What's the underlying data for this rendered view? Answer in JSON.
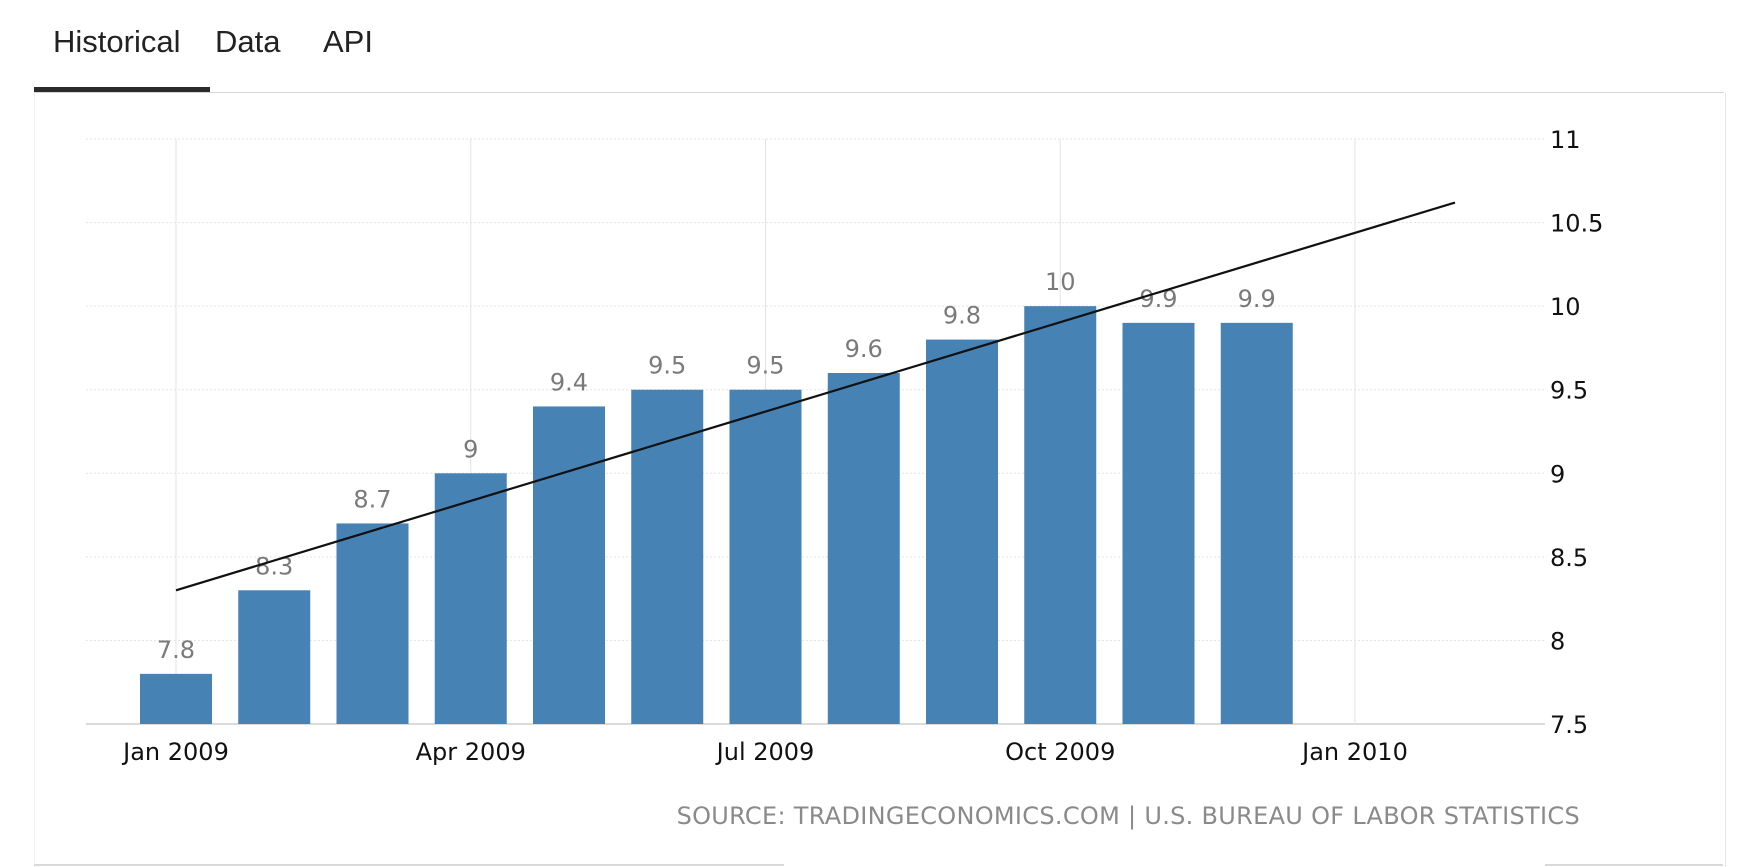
{
  "tabs": [
    {
      "label": "Historical",
      "active": true
    },
    {
      "label": "Data",
      "active": false
    },
    {
      "label": "API",
      "active": false
    }
  ],
  "colors": {
    "bar": "#4682b4",
    "trend_line": "#111111",
    "grid": "#e3e3e3",
    "value_label": "#7a7a7a",
    "axis_text": "#111111"
  },
  "source_text": "SOURCE: TRADINGECONOMICS.COM | U.S. BUREAU OF LABOR STATISTICS",
  "chart_data": {
    "type": "bar",
    "title": "",
    "xlabel": "",
    "ylabel": "",
    "x_unit": "month",
    "categories": [
      "Jan 2009",
      "Feb 2009",
      "Mar 2009",
      "Apr 2009",
      "May 2009",
      "Jun 2009",
      "Jul 2009",
      "Aug 2009",
      "Sep 2009",
      "Oct 2009",
      "Nov 2009",
      "Dec 2009"
    ],
    "values": [
      7.8,
      8.3,
      8.7,
      9.0,
      9.4,
      9.5,
      9.5,
      9.6,
      9.8,
      10.0,
      9.9,
      9.9
    ],
    "value_labels": [
      "7.8",
      "8.3",
      "8.7",
      "9",
      "9.4",
      "9.5",
      "9.5",
      "9.6",
      "9.8",
      "10",
      "9.9",
      "9.9"
    ],
    "x_ticks": [
      "Jan 2009",
      "Apr 2009",
      "Jul 2009",
      "Oct 2009",
      "Jan 2010"
    ],
    "y_ticks": [
      "7.5",
      "8",
      "8.5",
      "9",
      "9.5",
      "10",
      "10.5",
      "11"
    ],
    "ylim": [
      7.5,
      11
    ],
    "y_axis_side": "right",
    "grid": true,
    "trend_line": {
      "start": {
        "x": "Jan 2009",
        "y": 8.3
      },
      "end": {
        "x": "Jan 2010",
        "y": 10.62
      }
    }
  }
}
